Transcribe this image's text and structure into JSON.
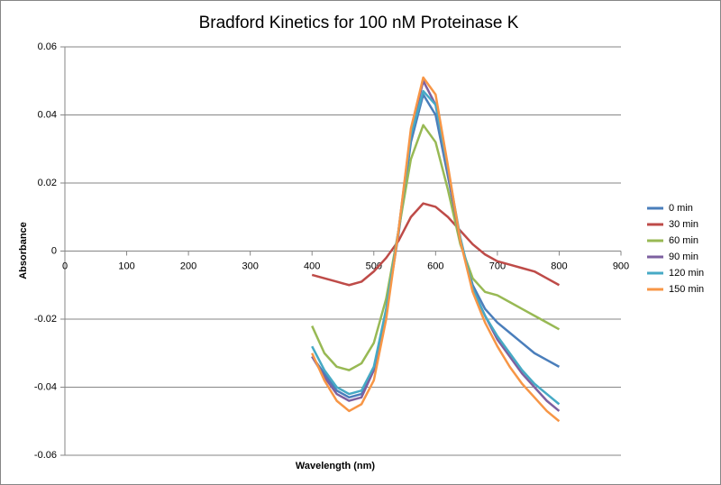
{
  "chart_data": {
    "type": "line",
    "title": "Bradford Kinetics for 100 nM Proteinase K",
    "x_label": "Wavelength (nm)",
    "y_label": "Absorbance",
    "x": [
      400,
      420,
      440,
      460,
      480,
      500,
      520,
      540,
      560,
      580,
      600,
      620,
      640,
      660,
      680,
      700,
      720,
      740,
      760,
      780,
      800
    ],
    "series": [
      {
        "name": "0 min",
        "color": "#4a7ebb",
        "values": [
          -0.031,
          -0.036,
          -0.041,
          -0.043,
          -0.042,
          -0.035,
          -0.018,
          0.005,
          0.032,
          0.046,
          0.04,
          0.022,
          0.003,
          -0.01,
          -0.017,
          -0.021,
          -0.024,
          -0.027,
          -0.03,
          -0.032,
          -0.034
        ]
      },
      {
        "name": "30 min",
        "color": "#be4b48",
        "values": [
          -0.007,
          -0.008,
          -0.009,
          -0.01,
          -0.009,
          -0.006,
          -0.002,
          0.003,
          0.01,
          0.014,
          0.013,
          0.01,
          0.006,
          0.002,
          -0.001,
          -0.003,
          -0.004,
          -0.005,
          -0.006,
          -0.008,
          -0.01
        ]
      },
      {
        "name": "60 min",
        "color": "#98b954",
        "values": [
          -0.022,
          -0.03,
          -0.034,
          -0.035,
          -0.033,
          -0.027,
          -0.014,
          0.006,
          0.027,
          0.037,
          0.032,
          0.018,
          0.002,
          -0.008,
          -0.012,
          -0.013,
          -0.015,
          -0.017,
          -0.019,
          -0.021,
          -0.023
        ]
      },
      {
        "name": "90 min",
        "color": "#7d60a0",
        "values": [
          -0.031,
          -0.037,
          -0.042,
          -0.044,
          -0.043,
          -0.035,
          -0.018,
          0.006,
          0.035,
          0.05,
          0.043,
          0.023,
          0.003,
          -0.011,
          -0.019,
          -0.026,
          -0.031,
          -0.036,
          -0.04,
          -0.044,
          -0.047
        ]
      },
      {
        "name": "120 min",
        "color": "#46aac5",
        "values": [
          -0.028,
          -0.035,
          -0.04,
          -0.042,
          -0.041,
          -0.034,
          -0.017,
          0.006,
          0.034,
          0.047,
          0.043,
          0.024,
          0.004,
          -0.011,
          -0.019,
          -0.025,
          -0.03,
          -0.035,
          -0.039,
          -0.042,
          -0.045
        ]
      },
      {
        "name": "150 min",
        "color": "#f79646",
        "values": [
          -0.03,
          -0.038,
          -0.044,
          -0.047,
          -0.045,
          -0.038,
          -0.02,
          0.006,
          0.036,
          0.051,
          0.046,
          0.025,
          0.003,
          -0.012,
          -0.021,
          -0.028,
          -0.034,
          -0.039,
          -0.043,
          -0.047,
          -0.05
        ]
      }
    ],
    "xlim": [
      0,
      900
    ],
    "xticks": [
      0,
      100,
      200,
      300,
      400,
      500,
      600,
      700,
      800,
      900
    ],
    "ylim": [
      -0.06,
      0.06
    ],
    "yticks": [
      -0.06,
      -0.04,
      -0.02,
      0,
      0.02,
      0.04,
      0.06
    ],
    "grid": true,
    "legend": "right"
  }
}
